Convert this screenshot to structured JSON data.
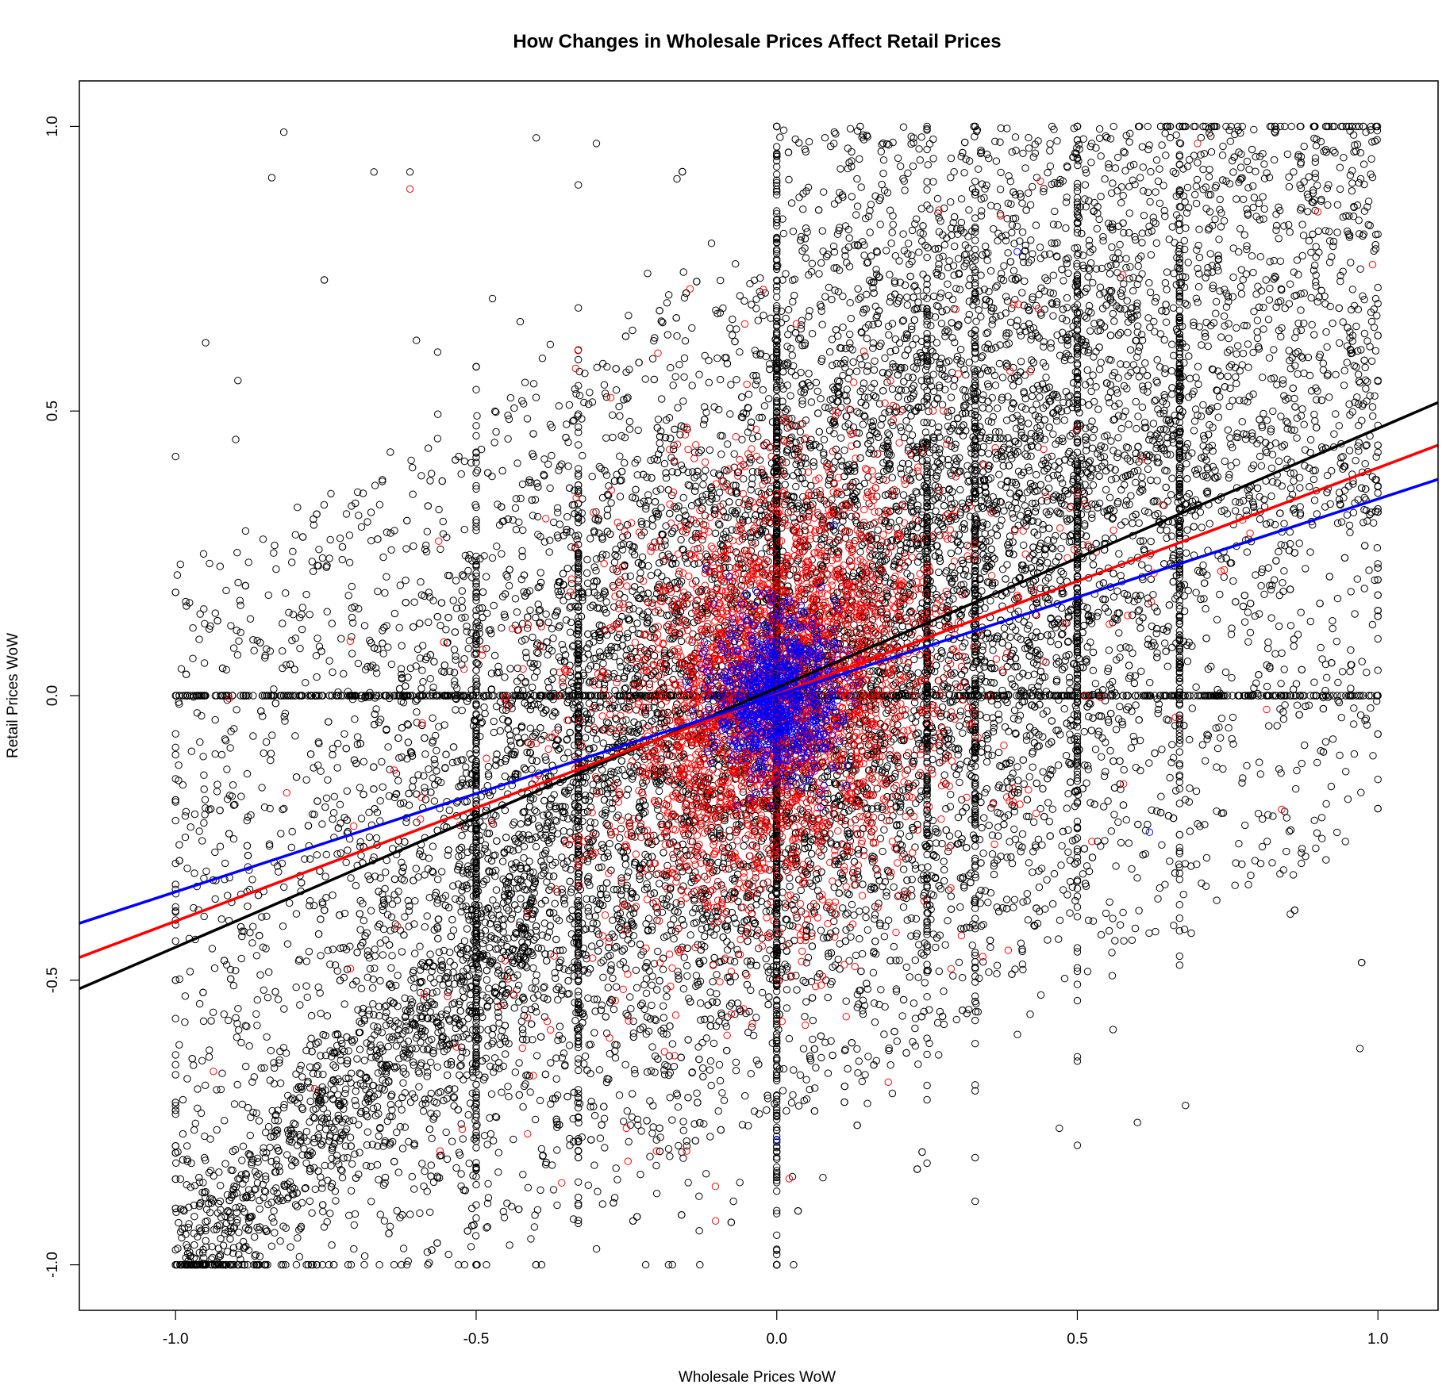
{
  "chart_data": {
    "type": "scatter",
    "title": "How Changes in Wholesale Prices Affect Retail Prices",
    "xlabel": "Wholesale Prices WoW",
    "ylabel": "Retail Prices WoW",
    "xlim": [
      -1.16,
      1.1
    ],
    "ylim": [
      -1.08,
      1.08
    ],
    "xticks": [
      -1.0,
      -0.5,
      0.0,
      0.5,
      1.0
    ],
    "yticks": [
      -1.0,
      -0.5,
      0.0,
      0.5,
      1.0
    ],
    "xtick_labels": [
      "-1.0",
      "-0.5",
      "0.0",
      "0.5",
      "1.0"
    ],
    "ytick_labels": [
      "-1.0",
      "-0.5",
      "0.0",
      "0.5",
      "1.0"
    ],
    "grid": false,
    "legend": "none",
    "series": [
      {
        "color": "#000000",
        "marker": "open-circle",
        "approx_distribution": "dense cloud over x in [-1,1], y in [-1,1]; vertical bands at x = -0.5, -0.33, 0, 0.25, 0.33, 0.5, 0.67; horizontal band at y = 0",
        "sample_points": [
          [
            -1.0,
            -1.0
          ],
          [
            -0.98,
            -0.97
          ],
          [
            -0.95,
            -0.94
          ],
          [
            -0.9,
            -0.9
          ],
          [
            -0.85,
            -0.85
          ],
          [
            -0.8,
            -0.82
          ],
          [
            -0.75,
            -0.75
          ],
          [
            -0.7,
            -0.72
          ],
          [
            -0.65,
            -0.66
          ],
          [
            -0.6,
            -0.62
          ],
          [
            -0.55,
            -0.56
          ],
          [
            -0.82,
            0.99
          ],
          [
            -0.84,
            0.91
          ],
          [
            -0.67,
            0.92
          ],
          [
            -0.61,
            0.92
          ],
          [
            -0.4,
            0.98
          ],
          [
            -0.3,
            0.97
          ],
          [
            -0.18,
            -1.0
          ],
          [
            0.0,
            -1.0
          ],
          [
            0.0,
            1.0
          ],
          [
            0.5,
            1.0
          ],
          [
            0.98,
            0.99
          ],
          [
            1.0,
            0.0
          ],
          [
            -1.0,
            0.0
          ],
          [
            -0.5,
            0.0
          ],
          [
            0.5,
            0.0
          ],
          [
            0.47,
            -0.76
          ],
          [
            0.6,
            -0.75
          ],
          [
            0.68,
            -0.72
          ],
          [
            0.97,
            -0.62
          ],
          [
            -0.95,
            0.62
          ],
          [
            -0.9,
            0.45
          ],
          [
            -1.0,
            0.42
          ]
        ]
      },
      {
        "color": "#ff0000",
        "marker": "open-circle",
        "approx_distribution": "concentrated near origin, x in [-0.6,0.4], y in [-0.6,0.5]",
        "sample_points": [
          [
            -0.61,
            0.89
          ],
          [
            0.7,
            0.97
          ],
          [
            0.9,
            0.85
          ],
          [
            -0.2,
            -0.8
          ],
          [
            -0.15,
            -0.8
          ],
          [
            -0.25,
            -0.76
          ],
          [
            0.29,
            -0.48
          ],
          [
            -0.56,
            -0.8
          ],
          [
            0.84,
            -0.2
          ],
          [
            0.0,
            0.0
          ],
          [
            0.05,
            0.1
          ],
          [
            -0.05,
            -0.1
          ]
        ]
      },
      {
        "color": "#0000ff",
        "marker": "open-circle",
        "approx_distribution": "tight cluster around origin",
        "sample_points": [
          [
            0.0,
            0.0
          ],
          [
            0.02,
            0.05
          ],
          [
            -0.03,
            -0.04
          ],
          [
            0.0,
            -0.78
          ],
          [
            0.4,
            0.78
          ],
          [
            0.62,
            -0.24
          ]
        ]
      }
    ],
    "fit_lines": [
      {
        "color": "#000000",
        "x": [
          -1.16,
          1.1
        ],
        "y": [
          -0.515,
          0.515
        ]
      },
      {
        "color": "#ff0000",
        "x": [
          -1.16,
          1.1
        ],
        "y": [
          -0.46,
          0.44
        ]
      },
      {
        "color": "#0000ff",
        "x": [
          -1.16,
          1.1
        ],
        "y": [
          -0.4,
          0.38
        ]
      }
    ]
  }
}
